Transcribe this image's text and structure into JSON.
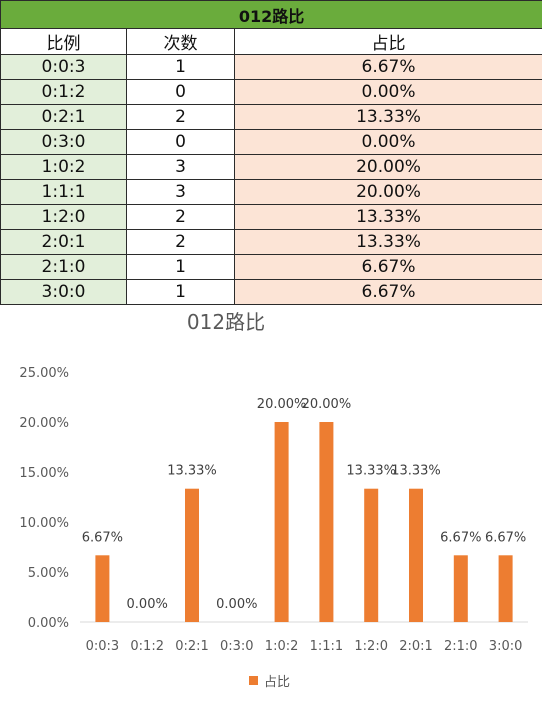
{
  "table": {
    "title": "012路比",
    "headers": [
      "比例",
      "次数",
      "占比"
    ],
    "rows": [
      {
        "ratio": "0:0:3",
        "count": "1",
        "share": "6.67%"
      },
      {
        "ratio": "0:1:2",
        "count": "0",
        "share": "0.00%"
      },
      {
        "ratio": "0:2:1",
        "count": "2",
        "share": "13.33%"
      },
      {
        "ratio": "0:3:0",
        "count": "0",
        "share": "0.00%"
      },
      {
        "ratio": "1:0:2",
        "count": "3",
        "share": "20.00%"
      },
      {
        "ratio": "1:1:1",
        "count": "3",
        "share": "20.00%"
      },
      {
        "ratio": "1:2:0",
        "count": "2",
        "share": "13.33%"
      },
      {
        "ratio": "2:0:1",
        "count": "2",
        "share": "13.33%"
      },
      {
        "ratio": "2:1:0",
        "count": "1",
        "share": "6.67%"
      },
      {
        "ratio": "3:0:0",
        "count": "1",
        "share": "6.67%"
      }
    ]
  },
  "colors": {
    "title_fill": "#6aac3c",
    "ratio_fill": "#e2efda",
    "share_fill": "#fce4d6",
    "bar": "#ed7d31"
  },
  "chart_data": {
    "type": "bar",
    "title": "012路比",
    "categories": [
      "0:0:3",
      "0:1:2",
      "0:2:1",
      "0:3:0",
      "1:0:2",
      "1:1:1",
      "1:2:0",
      "2:0:1",
      "2:1:0",
      "3:0:0"
    ],
    "series": [
      {
        "name": "占比",
        "values": [
          6.67,
          0.0,
          13.33,
          0.0,
          20.0,
          20.0,
          13.33,
          13.33,
          6.67,
          6.67
        ]
      }
    ],
    "data_labels": [
      "6.67%",
      "0.00%",
      "13.33%",
      "0.00%",
      "20.00%",
      "20.00%",
      "13.33%",
      "13.33%",
      "6.67%",
      "6.67%"
    ],
    "y_ticks": [
      "0.00%",
      "5.00%",
      "10.00%",
      "15.00%",
      "20.00%",
      "25.00%"
    ],
    "ylim": [
      0,
      25
    ],
    "grid": false,
    "legend_position": "bottom"
  }
}
